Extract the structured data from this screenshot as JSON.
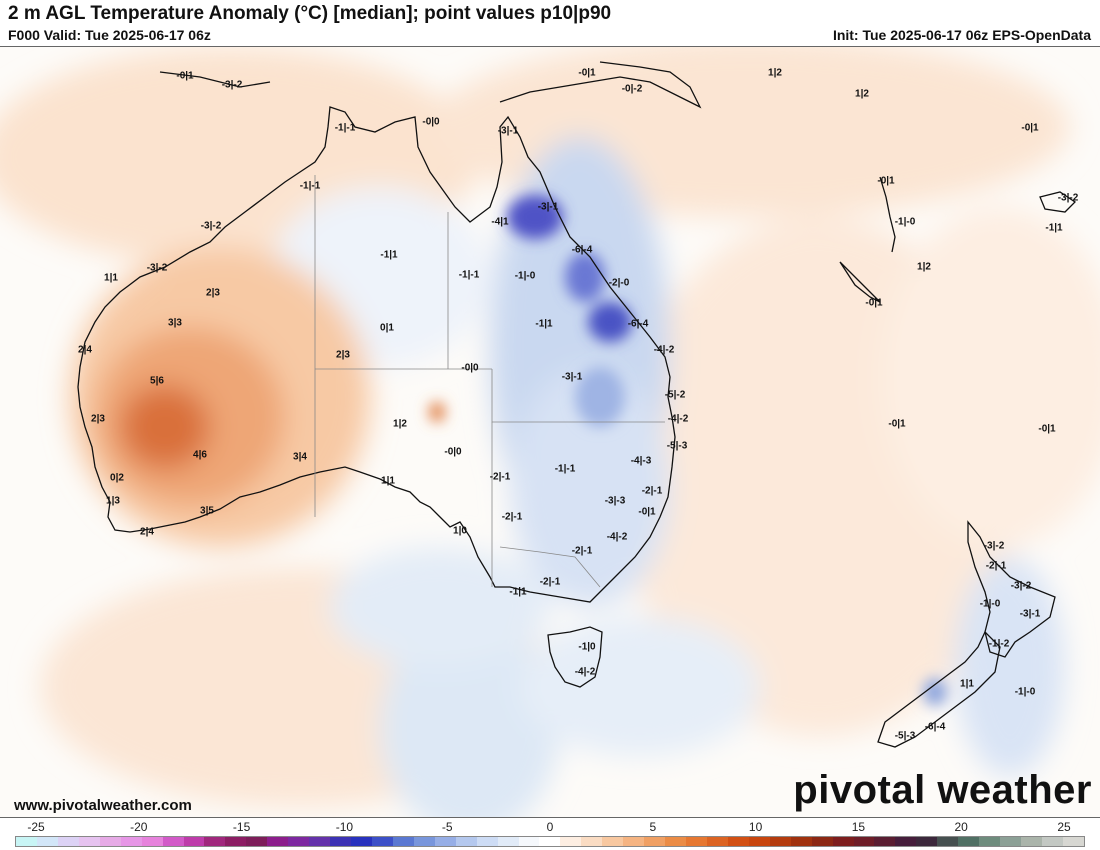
{
  "header": {
    "title": "2 m AGL Temperature Anomaly (°C) [median]; point values p10|p90",
    "valid": "F000 Valid: Tue 2025-06-17 06z",
    "init": "Init: Tue 2025-06-17 06z EPS-OpenData"
  },
  "footer": {
    "site_url": "www.pivotalweather.com",
    "brand": "pivotal weather"
  },
  "colorbar": {
    "ticks": [
      "-25",
      "-20",
      "-15",
      "-10",
      "-5",
      "0",
      "5",
      "10",
      "15",
      "20",
      "25"
    ],
    "colors": [
      "#c8f5f5",
      "#d2e6f8",
      "#dcd2f5",
      "#e6c3f0",
      "#e6aae6",
      "#e696e6",
      "#e682dc",
      "#d25ac8",
      "#be3caa",
      "#a0287d",
      "#8c1e64",
      "#7d1e5a",
      "#8c1e8c",
      "#7d28a0",
      "#6432aa",
      "#3c32b4",
      "#2832be",
      "#3c50c8",
      "#5a78d2",
      "#7896dc",
      "#96aee6",
      "#b4c8ee",
      "#cddcf5",
      "#e1ebf8",
      "#f5f8fc",
      "#ffffff",
      "#fdeee2",
      "#fadcc3",
      "#f8c8a0",
      "#f5b482",
      "#f0a064",
      "#eb8c46",
      "#e67832",
      "#dc6423",
      "#d25014",
      "#c8460f",
      "#b43c0f",
      "#a0320f",
      "#8c2814",
      "#7d1e1e",
      "#6e1e28",
      "#5a1e32",
      "#461e3c",
      "#3c283c",
      "#465050",
      "#507064",
      "#6e8c7d",
      "#8ca096",
      "#aab4aa",
      "#c3c8c3",
      "#d7d7d2"
    ]
  },
  "point_values": [
    "-0|1",
    "-3|-2",
    "-0|1",
    "1|2",
    "-0|-2",
    "1|2",
    "-0|1",
    "-1|-1",
    "-0|0",
    "-3|-1",
    "-1|-1",
    "-3|-2",
    "-0|1",
    "-1|-0",
    "-4|1",
    "-3|-1",
    "-3|-2",
    "-1|1",
    "-1|-1",
    "-1|-0",
    "-1|1",
    "-6|-4",
    "-1|1",
    "1|1",
    "-3|-2",
    "-2|-0",
    "2|3",
    "3|3",
    "0|1",
    "-0|1",
    "-6|-4",
    "1|2",
    "2|4",
    "2|3",
    "-4|-2",
    "-0|0",
    "-3|-1",
    "5|6",
    "-5|-2",
    "2|3",
    "1|2",
    "-4|-2",
    "-0|1",
    "-0|1",
    "4|6",
    "3|4",
    "-0|0",
    "-5|-3",
    "-4|-3",
    "-1|-1",
    "-2|-1",
    "0|2",
    "1|1",
    "-2|-1",
    "1|3",
    "-3|-3",
    "3|5",
    "-0|1",
    "2|4",
    "-2|-1",
    "1|0",
    "-4|-2",
    "-3|-2",
    "-2|-1",
    "-2|-1",
    "-3|-2",
    "-2|-1",
    "-1|1",
    "-1|-0",
    "-3|-1",
    "-1|0",
    "-1|-2",
    "-4|-2",
    "1|1",
    "-1|-0",
    "-6|-4",
    "-5|-3"
  ]
}
